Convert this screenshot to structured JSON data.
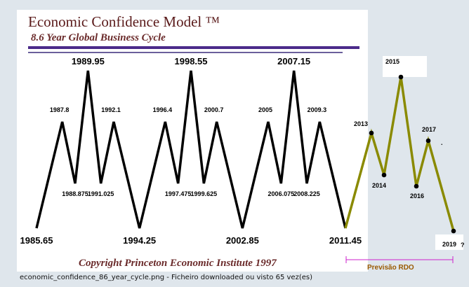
{
  "caption": "economic_confidence_86_year_cycle.png - Ficheiro downloaded ou visto 65 vez(es)",
  "chart_data": [
    {
      "type": "line",
      "title": "Economic Confidence Model ™",
      "subtitle": "8.6 Year Global Business Cycle",
      "copyright": "Copyright Princeton Economic Institute 1997",
      "line_color": "#000000",
      "points": [
        {
          "x": 1985.65,
          "label": "1985.65",
          "level": "low",
          "size": "major"
        },
        {
          "x": 1987.8,
          "label": "1987.8",
          "level": "high",
          "size": "minor"
        },
        {
          "x": 1988.875,
          "label": "1988.875",
          "level": "low2",
          "size": "minor"
        },
        {
          "x": 1989.95,
          "label": "1989.95",
          "level": "peak",
          "size": "major"
        },
        {
          "x": 1991.025,
          "label": "1991.025",
          "level": "low2",
          "size": "minor"
        },
        {
          "x": 1992.1,
          "label": "1992.1",
          "level": "high",
          "size": "minor"
        },
        {
          "x": 1994.25,
          "label": "1994.25",
          "level": "low",
          "size": "major"
        },
        {
          "x": 1996.4,
          "label": "1996.4",
          "level": "high",
          "size": "minor"
        },
        {
          "x": 1997.475,
          "label": "1997.475",
          "level": "low2",
          "size": "minor"
        },
        {
          "x": 1998.55,
          "label": "1998.55",
          "level": "peak",
          "size": "major"
        },
        {
          "x": 1999.625,
          "label": "1999.625",
          "level": "low2",
          "size": "minor"
        },
        {
          "x": 2000.7,
          "label": "2000.7",
          "level": "high",
          "size": "minor"
        },
        {
          "x": 2002.85,
          "label": "2002.85",
          "level": "low",
          "size": "major"
        },
        {
          "x": 2005,
          "label": "2005",
          "level": "high",
          "size": "minor"
        },
        {
          "x": 2006.075,
          "label": "2006.075",
          "level": "low2",
          "size": "minor"
        },
        {
          "x": 2007.15,
          "label": "2007.15",
          "level": "peak",
          "size": "major"
        },
        {
          "x": 2008.225,
          "label": "2008.225",
          "level": "low2",
          "size": "minor"
        },
        {
          "x": 2009.3,
          "label": "2009.3",
          "level": "high",
          "size": "minor"
        },
        {
          "x": 2011.45,
          "label": "2011.45",
          "level": "low",
          "size": "major"
        }
      ]
    },
    {
      "type": "line",
      "legend": "Previsão RDO",
      "line_color": "#8a8a00",
      "marker_color": "#000000",
      "points": [
        {
          "x": 2011.45,
          "label": ""
        },
        {
          "x": 2013,
          "label": "2013"
        },
        {
          "x": 2014,
          "label": "2014"
        },
        {
          "x": 2015,
          "label": "2015"
        },
        {
          "x": 2016,
          "label": "2016"
        },
        {
          "x": 2017,
          "label": "2017"
        },
        {
          "x": 2019,
          "label": "2019"
        }
      ],
      "question_mark": "?",
      "dot_mark": "."
    }
  ]
}
